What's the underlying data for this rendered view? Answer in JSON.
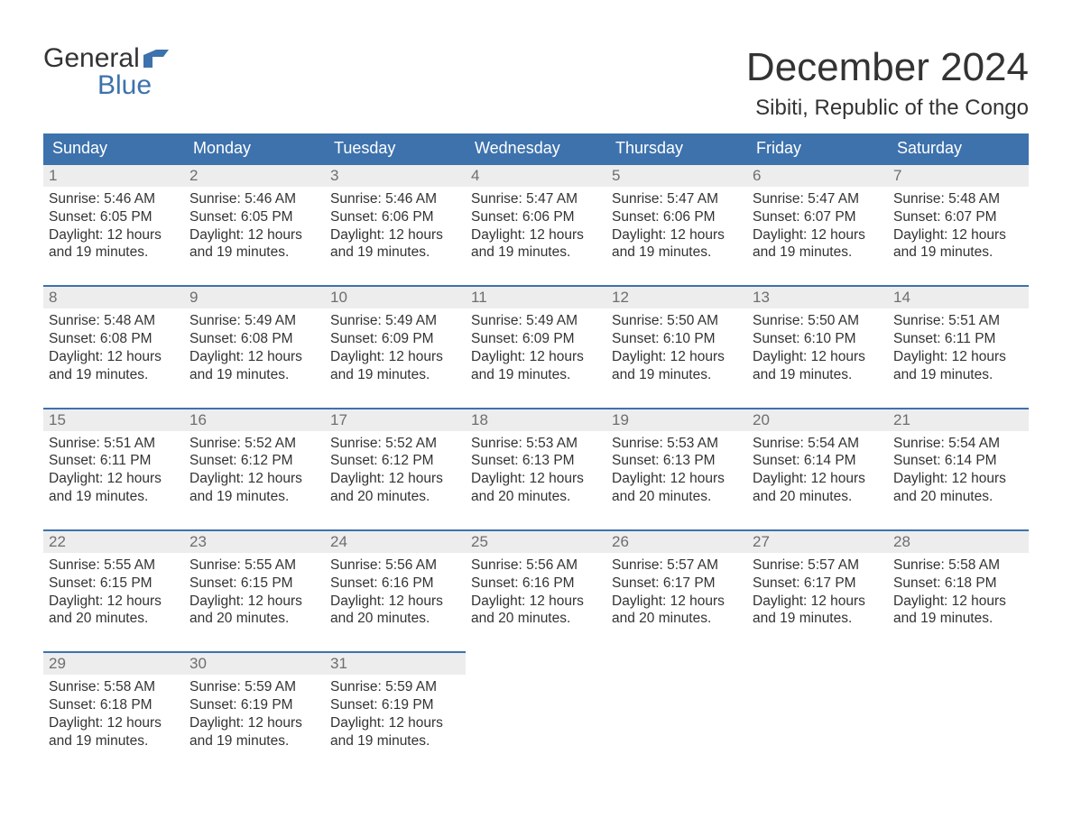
{
  "logo": {
    "word1": "General",
    "word2": "Blue"
  },
  "title": "December 2024",
  "subtitle": "Sibiti, Republic of the Congo",
  "colors": {
    "header_bg": "#3d72ad",
    "header_text": "#ffffff",
    "daynum_bg": "#ededed",
    "daynum_text": "#6e6e6e",
    "body_text": "#333333",
    "accent": "#3d72ad",
    "page_bg": "#ffffff"
  },
  "week_days": [
    "Sunday",
    "Monday",
    "Tuesday",
    "Wednesday",
    "Thursday",
    "Friday",
    "Saturday"
  ],
  "labels": {
    "sunrise": "Sunrise:",
    "sunset": "Sunset:",
    "daylight": "Daylight:",
    "hours": "hours",
    "and": "and",
    "minutes": "minutes."
  },
  "weeks": [
    [
      {
        "n": "1",
        "sr": "5:46 AM",
        "ss": "6:05 PM",
        "dh": "12",
        "dm": "19"
      },
      {
        "n": "2",
        "sr": "5:46 AM",
        "ss": "6:05 PM",
        "dh": "12",
        "dm": "19"
      },
      {
        "n": "3",
        "sr": "5:46 AM",
        "ss": "6:06 PM",
        "dh": "12",
        "dm": "19"
      },
      {
        "n": "4",
        "sr": "5:47 AM",
        "ss": "6:06 PM",
        "dh": "12",
        "dm": "19"
      },
      {
        "n": "5",
        "sr": "5:47 AM",
        "ss": "6:06 PM",
        "dh": "12",
        "dm": "19"
      },
      {
        "n": "6",
        "sr": "5:47 AM",
        "ss": "6:07 PM",
        "dh": "12",
        "dm": "19"
      },
      {
        "n": "7",
        "sr": "5:48 AM",
        "ss": "6:07 PM",
        "dh": "12",
        "dm": "19"
      }
    ],
    [
      {
        "n": "8",
        "sr": "5:48 AM",
        "ss": "6:08 PM",
        "dh": "12",
        "dm": "19"
      },
      {
        "n": "9",
        "sr": "5:49 AM",
        "ss": "6:08 PM",
        "dh": "12",
        "dm": "19"
      },
      {
        "n": "10",
        "sr": "5:49 AM",
        "ss": "6:09 PM",
        "dh": "12",
        "dm": "19"
      },
      {
        "n": "11",
        "sr": "5:49 AM",
        "ss": "6:09 PM",
        "dh": "12",
        "dm": "19"
      },
      {
        "n": "12",
        "sr": "5:50 AM",
        "ss": "6:10 PM",
        "dh": "12",
        "dm": "19"
      },
      {
        "n": "13",
        "sr": "5:50 AM",
        "ss": "6:10 PM",
        "dh": "12",
        "dm": "19"
      },
      {
        "n": "14",
        "sr": "5:51 AM",
        "ss": "6:11 PM",
        "dh": "12",
        "dm": "19"
      }
    ],
    [
      {
        "n": "15",
        "sr": "5:51 AM",
        "ss": "6:11 PM",
        "dh": "12",
        "dm": "19"
      },
      {
        "n": "16",
        "sr": "5:52 AM",
        "ss": "6:12 PM",
        "dh": "12",
        "dm": "19"
      },
      {
        "n": "17",
        "sr": "5:52 AM",
        "ss": "6:12 PM",
        "dh": "12",
        "dm": "20"
      },
      {
        "n": "18",
        "sr": "5:53 AM",
        "ss": "6:13 PM",
        "dh": "12",
        "dm": "20"
      },
      {
        "n": "19",
        "sr": "5:53 AM",
        "ss": "6:13 PM",
        "dh": "12",
        "dm": "20"
      },
      {
        "n": "20",
        "sr": "5:54 AM",
        "ss": "6:14 PM",
        "dh": "12",
        "dm": "20"
      },
      {
        "n": "21",
        "sr": "5:54 AM",
        "ss": "6:14 PM",
        "dh": "12",
        "dm": "20"
      }
    ],
    [
      {
        "n": "22",
        "sr": "5:55 AM",
        "ss": "6:15 PM",
        "dh": "12",
        "dm": "20"
      },
      {
        "n": "23",
        "sr": "5:55 AM",
        "ss": "6:15 PM",
        "dh": "12",
        "dm": "20"
      },
      {
        "n": "24",
        "sr": "5:56 AM",
        "ss": "6:16 PM",
        "dh": "12",
        "dm": "20"
      },
      {
        "n": "25",
        "sr": "5:56 AM",
        "ss": "6:16 PM",
        "dh": "12",
        "dm": "20"
      },
      {
        "n": "26",
        "sr": "5:57 AM",
        "ss": "6:17 PM",
        "dh": "12",
        "dm": "20"
      },
      {
        "n": "27",
        "sr": "5:57 AM",
        "ss": "6:17 PM",
        "dh": "12",
        "dm": "19"
      },
      {
        "n": "28",
        "sr": "5:58 AM",
        "ss": "6:18 PM",
        "dh": "12",
        "dm": "19"
      }
    ],
    [
      {
        "n": "29",
        "sr": "5:58 AM",
        "ss": "6:18 PM",
        "dh": "12",
        "dm": "19"
      },
      {
        "n": "30",
        "sr": "5:59 AM",
        "ss": "6:19 PM",
        "dh": "12",
        "dm": "19"
      },
      {
        "n": "31",
        "sr": "5:59 AM",
        "ss": "6:19 PM",
        "dh": "12",
        "dm": "19"
      },
      null,
      null,
      null,
      null
    ]
  ]
}
